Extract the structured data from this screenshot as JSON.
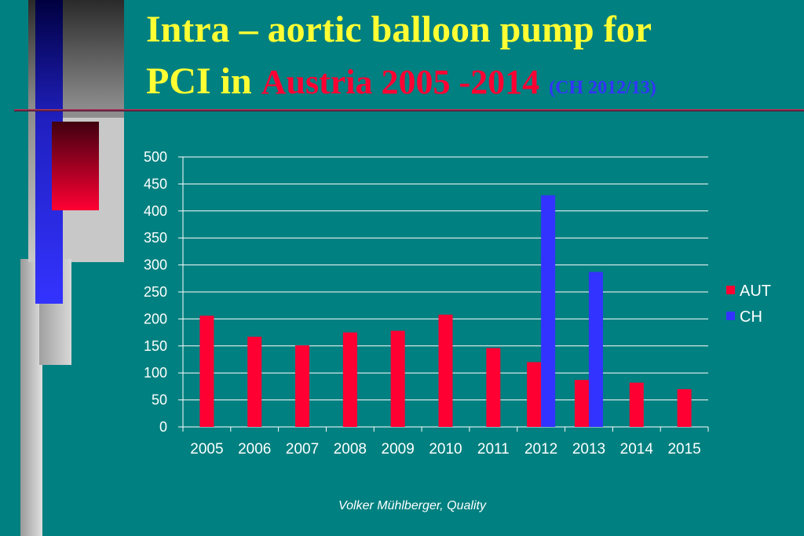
{
  "slide": {
    "title_part1": "Intra – aortic balloon pump for",
    "title_part2a": "PCI  in",
    "title_part2b": "Austria 2005 -2014",
    "title_part2c": "(CH 2012/13)",
    "footer": "Volker Mühlberger, Quality"
  },
  "colors": {
    "background": "#008080",
    "title": "#ffff33",
    "aut": "#ff0033",
    "ch": "#3333ff"
  },
  "chart_data": {
    "type": "bar",
    "categories": [
      "2005",
      "2006",
      "2007",
      "2008",
      "2009",
      "2010",
      "2011",
      "2012",
      "2013",
      "2014",
      "2015"
    ],
    "series": [
      {
        "name": "AUT",
        "color": "#ff0033",
        "values": [
          206,
          167,
          151,
          175,
          178,
          208,
          146,
          120,
          87,
          82,
          70
        ]
      },
      {
        "name": "CH",
        "color": "#3333ff",
        "values": [
          null,
          null,
          null,
          null,
          null,
          null,
          null,
          429,
          287,
          null,
          null
        ]
      }
    ],
    "ylim": [
      0,
      500
    ],
    "yticks": [
      0,
      50,
      100,
      150,
      200,
      250,
      300,
      350,
      400,
      450,
      500
    ],
    "grid": true,
    "legend": "right"
  }
}
